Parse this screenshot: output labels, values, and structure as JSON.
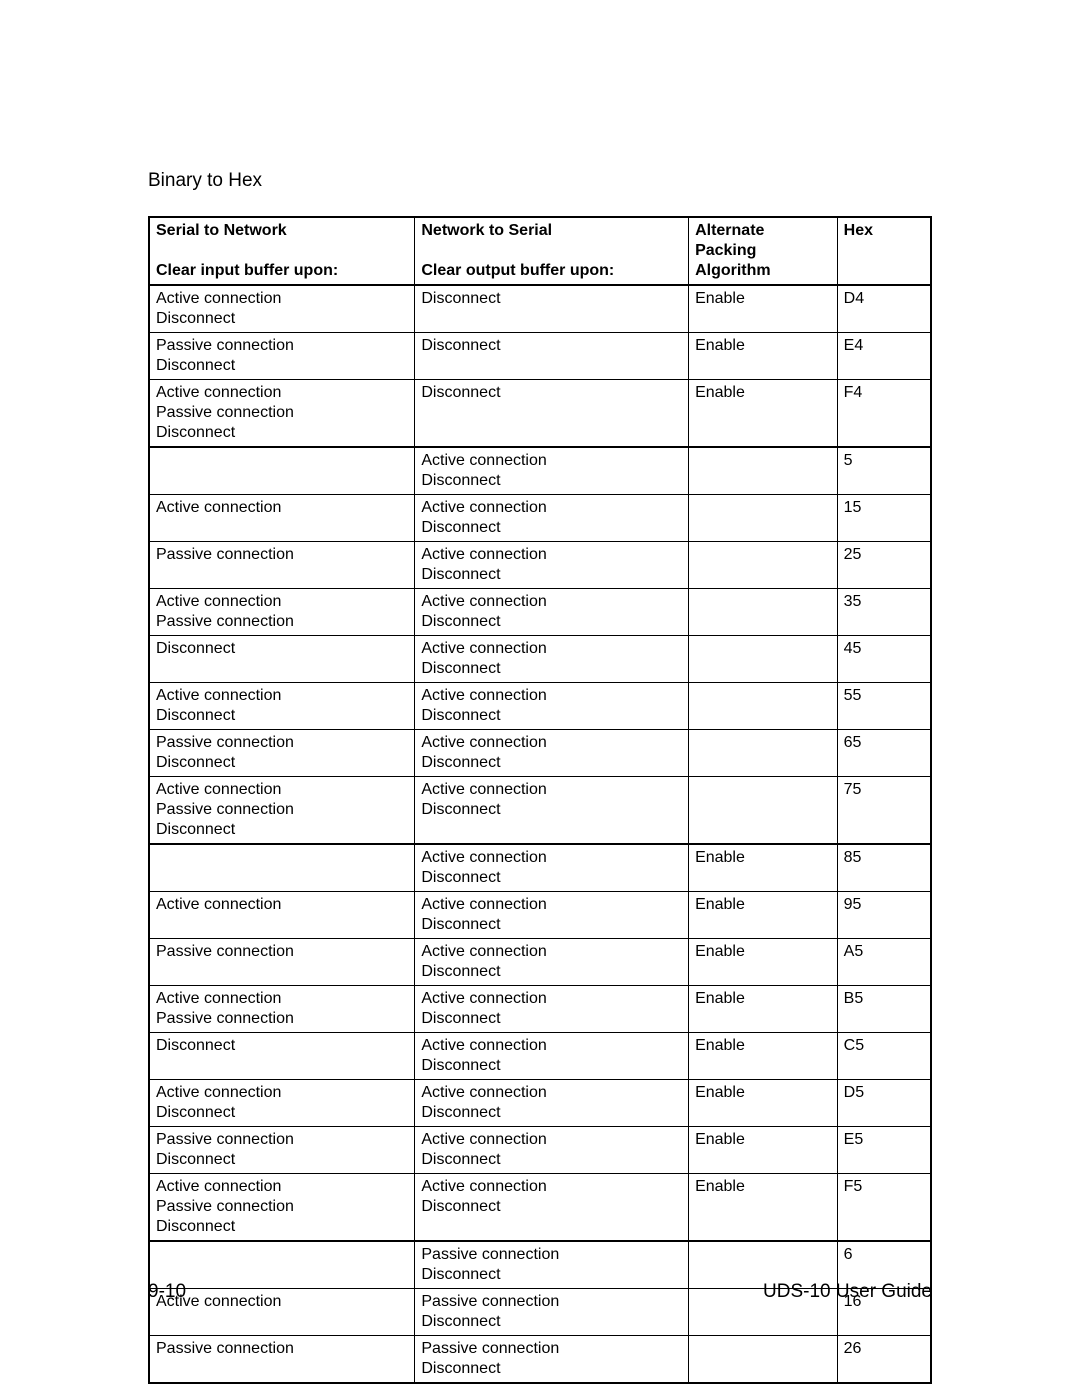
{
  "title": "Binary to Hex",
  "footer": {
    "left": "9-10",
    "right": "UDS-10 User Guide"
  },
  "table": {
    "columns": [
      {
        "line1": "Serial to Network",
        "line2": "Clear input buffer upon:"
      },
      {
        "line1": "Network to Serial",
        "line2": "Clear output buffer upon:"
      },
      {
        "line1": "Alternate",
        "line2": "Packing",
        "line3": "Algorithm"
      },
      {
        "line1": "Hex"
      }
    ],
    "groups": [
      {
        "rows": [
          {
            "c1": [
              "Active connection",
              "Disconnect"
            ],
            "c2": [
              "Disconnect"
            ],
            "c3": [
              "Enable"
            ],
            "c4": [
              "D4"
            ]
          },
          {
            "c1": [
              "Passive connection",
              "Disconnect"
            ],
            "c2": [
              "Disconnect"
            ],
            "c3": [
              "Enable"
            ],
            "c4": [
              "E4"
            ]
          },
          {
            "c1": [
              "Active connection",
              "Passive connection",
              "Disconnect"
            ],
            "c2": [
              "Disconnect"
            ],
            "c3": [
              "Enable"
            ],
            "c4": [
              "F4"
            ]
          }
        ]
      },
      {
        "rows": [
          {
            "c1": [
              ""
            ],
            "c2": [
              "Active connection",
              "Disconnect"
            ],
            "c3": [
              ""
            ],
            "c4": [
              "5"
            ]
          },
          {
            "c1": [
              "Active connection"
            ],
            "c2": [
              "Active connection",
              "Disconnect"
            ],
            "c3": [
              ""
            ],
            "c4": [
              "15"
            ]
          },
          {
            "c1": [
              "Passive connection"
            ],
            "c2": [
              "Active connection",
              "Disconnect"
            ],
            "c3": [
              ""
            ],
            "c4": [
              "25"
            ]
          },
          {
            "c1": [
              "Active connection",
              "Passive connection"
            ],
            "c2": [
              "Active connection",
              "Disconnect"
            ],
            "c3": [
              ""
            ],
            "c4": [
              "35"
            ]
          },
          {
            "c1": [
              "Disconnect"
            ],
            "c2": [
              "Active connection",
              "Disconnect"
            ],
            "c3": [
              ""
            ],
            "c4": [
              "45"
            ]
          },
          {
            "c1": [
              "Active connection",
              "Disconnect"
            ],
            "c2": [
              "Active connection",
              "Disconnect"
            ],
            "c3": [
              ""
            ],
            "c4": [
              "55"
            ]
          },
          {
            "c1": [
              "Passive connection",
              "Disconnect"
            ],
            "c2": [
              "Active connection",
              "Disconnect"
            ],
            "c3": [
              ""
            ],
            "c4": [
              "65"
            ]
          },
          {
            "c1": [
              "Active connection",
              "Passive connection",
              "Disconnect"
            ],
            "c2": [
              "Active connection",
              "Disconnect"
            ],
            "c3": [
              ""
            ],
            "c4": [
              "75"
            ]
          }
        ]
      },
      {
        "rows": [
          {
            "c1": [
              ""
            ],
            "c2": [
              "Active connection",
              "Disconnect"
            ],
            "c3": [
              "Enable"
            ],
            "c4": [
              "85"
            ]
          },
          {
            "c1": [
              "Active connection"
            ],
            "c2": [
              "Active connection",
              "Disconnect"
            ],
            "c3": [
              "Enable"
            ],
            "c4": [
              "95"
            ]
          },
          {
            "c1": [
              "Passive connection"
            ],
            "c2": [
              "Active connection",
              "Disconnect"
            ],
            "c3": [
              "Enable"
            ],
            "c4": [
              "A5"
            ]
          },
          {
            "c1": [
              "Active connection",
              "Passive connection"
            ],
            "c2": [
              "Active connection",
              "Disconnect"
            ],
            "c3": [
              "Enable"
            ],
            "c4": [
              "B5"
            ]
          },
          {
            "c1": [
              "Disconnect"
            ],
            "c2": [
              "Active connection",
              "Disconnect"
            ],
            "c3": [
              "Enable"
            ],
            "c4": [
              "C5"
            ]
          },
          {
            "c1": [
              "Active connection",
              "Disconnect"
            ],
            "c2": [
              "Active connection",
              "Disconnect"
            ],
            "c3": [
              "Enable"
            ],
            "c4": [
              "D5"
            ]
          },
          {
            "c1": [
              "Passive connection",
              "Disconnect"
            ],
            "c2": [
              "Active connection",
              "Disconnect"
            ],
            "c3": [
              "Enable"
            ],
            "c4": [
              "E5"
            ]
          },
          {
            "c1": [
              "Active connection",
              "Passive connection",
              "Disconnect"
            ],
            "c2": [
              "Active connection",
              "Disconnect"
            ],
            "c3": [
              "Enable"
            ],
            "c4": [
              "F5"
            ]
          }
        ]
      },
      {
        "rows": [
          {
            "c1": [
              ""
            ],
            "c2": [
              "Passive connection",
              "Disconnect"
            ],
            "c3": [
              ""
            ],
            "c4": [
              "6"
            ]
          },
          {
            "c1": [
              "Active connection"
            ],
            "c2": [
              "Passive connection",
              "Disconnect"
            ],
            "c3": [
              ""
            ],
            "c4": [
              "16"
            ]
          },
          {
            "c1": [
              "Passive connection"
            ],
            "c2": [
              "Passive connection",
              "Disconnect"
            ],
            "c3": [
              ""
            ],
            "c4": [
              "26"
            ]
          }
        ]
      }
    ]
  }
}
